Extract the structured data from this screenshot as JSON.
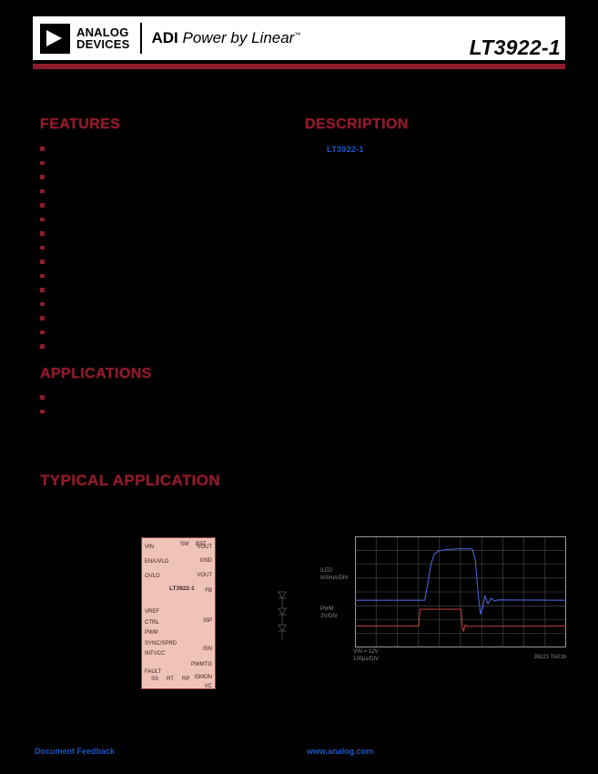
{
  "colors": {
    "accent_red": "#8e1b2c",
    "link_blue": "#1a56c4",
    "ic_fill": "#f0c3b9",
    "grid": "#4f4f4f",
    "plot_border": "#9a9a9a"
  },
  "icons": {
    "logo": "adi-arrowhead-triangle",
    "bullet": "filled-square",
    "led_string": "diode-symbols"
  },
  "header": {
    "logo_line1": "ANALOG",
    "logo_line2": "DEVICES",
    "brand_adi": "ADI",
    "brand_rest": "Power by Linear",
    "trademark": "™",
    "part_number": "LT3922-1"
  },
  "sections": {
    "features": {
      "title": "FEATURES",
      "items": [
        "",
        "",
        "",
        "",
        "",
        "",
        "",
        "",
        "",
        "",
        "",
        "",
        "",
        "",
        ""
      ]
    },
    "description": {
      "title": "DESCRIPTION",
      "part_link": "LT3922-1"
    },
    "applications": {
      "title": "APPLICATIONS",
      "items": [
        "",
        ""
      ]
    },
    "typical_application": {
      "title": "TYPICAL APPLICATION"
    }
  },
  "schematic": {
    "ic_label": "LT3922-1",
    "pins_top": [
      "SW",
      "BST"
    ],
    "pins_left": [
      "VIN",
      "EN/UVLO",
      "OVLO",
      "VREF",
      "CTRL",
      "PWM",
      "SYNC/SPRD",
      "INTVCC",
      "FAULT"
    ],
    "pins_right": [
      "VOUT",
      "GND",
      "VOUT",
      "FB",
      "ISP",
      "ISN",
      "PWMTG",
      "ISMON",
      "VC"
    ],
    "pins_bottom": [
      "SS",
      "RT",
      "RP"
    ]
  },
  "chart_data": {
    "type": "line",
    "x_divisions": 10,
    "y_divisions": 8,
    "series": [
      {
        "name": "ILED",
        "color": "#4a63d8",
        "points": [
          [
            0,
            3.4
          ],
          [
            3.3,
            3.4
          ],
          [
            3.45,
            4.6
          ],
          [
            3.6,
            6.0
          ],
          [
            3.75,
            6.7
          ],
          [
            3.95,
            6.95
          ],
          [
            4.3,
            7.05
          ],
          [
            5.0,
            7.1
          ],
          [
            5.55,
            7.1
          ],
          [
            5.7,
            6.3
          ],
          [
            5.85,
            3.6
          ],
          [
            5.95,
            2.4
          ],
          [
            6.05,
            2.9
          ],
          [
            6.15,
            3.7
          ],
          [
            6.3,
            3.15
          ],
          [
            6.45,
            3.55
          ],
          [
            6.6,
            3.35
          ],
          [
            6.8,
            3.42
          ],
          [
            10,
            3.4
          ]
        ]
      },
      {
        "name": "PWM",
        "color": "#b23a3a",
        "points": [
          [
            0,
            1.55
          ],
          [
            3.02,
            1.55
          ],
          [
            3.08,
            2.75
          ],
          [
            5.02,
            2.75
          ],
          [
            5.08,
            1.5
          ],
          [
            5.14,
            1.15
          ],
          [
            5.22,
            1.62
          ],
          [
            5.35,
            1.52
          ],
          [
            10,
            1.55
          ]
        ]
      }
    ],
    "labels": {
      "y1_line1": "ILED",
      "y1_line2": "500mA/DIV",
      "y2_line1": "PWM",
      "y2_line2": "2V/DIV",
      "note_line1": "VIN = 12V",
      "note_line2": "100μs/DIV",
      "figure_id": "39221 TA01b"
    }
  },
  "footer": {
    "feedback": "Document Feedback",
    "website": "www.analog.com"
  }
}
